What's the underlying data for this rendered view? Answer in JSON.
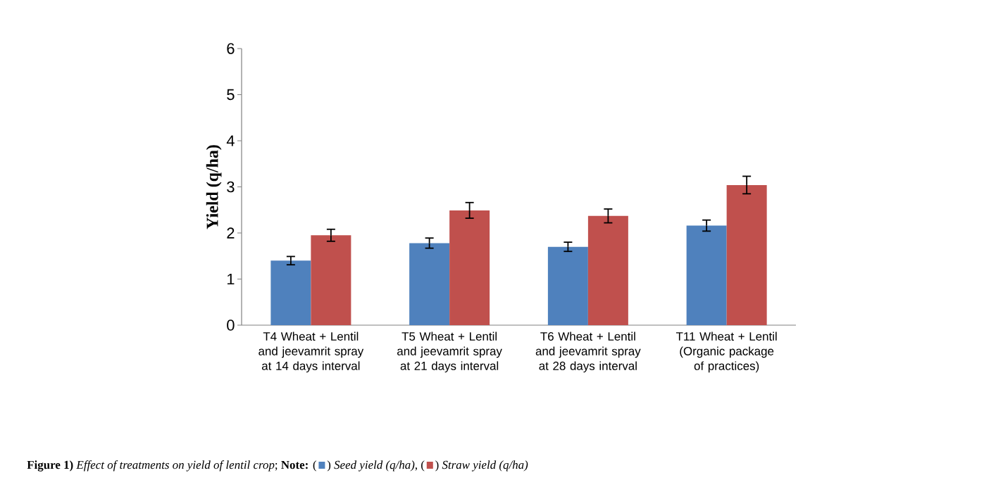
{
  "chart_data": {
    "type": "bar",
    "categories": [
      "T4 Wheat + Lentil and jeevamrit spray at 14 days interval",
      "T5  Wheat + Lentil and jeevamrit spray at 21  days interval",
      "T6  Wheat + Lentil and jeevamrit spray at 28  days interval",
      "T11  Wheat + Lentil (Organic package of practices)"
    ],
    "series": [
      {
        "name": "Seed yield (q/ha)",
        "color": "#4f81bd",
        "values": [
          1.4,
          1.78,
          1.7,
          2.16
        ],
        "errors": [
          0.09,
          0.11,
          0.1,
          0.12
        ]
      },
      {
        "name": "Straw yield (q/ha)",
        "color": "#c0504d",
        "values": [
          1.95,
          2.49,
          2.37,
          3.04
        ],
        "errors": [
          0.13,
          0.17,
          0.15,
          0.19
        ]
      }
    ],
    "ylabel": "Yield (q/ha)",
    "ylim": [
      0,
      6
    ],
    "yticks": [
      0,
      1,
      2,
      3,
      4,
      5,
      6
    ],
    "grid": false,
    "legend": "bottom left",
    "annotations": [
      "**Figure 1)** *Effect of treatments on yield of lentil crop*; **Note:**",
      "(",
      ")",
      ", (",
      ")"
    ]
  }
}
